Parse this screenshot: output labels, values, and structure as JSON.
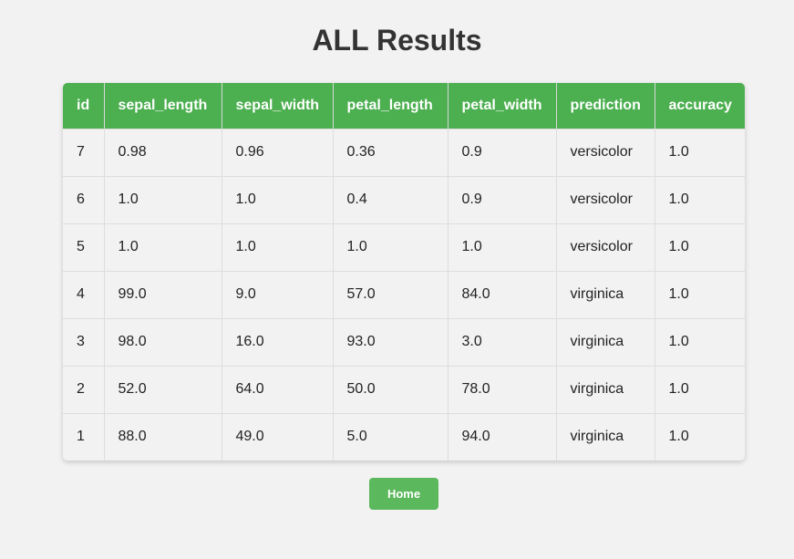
{
  "page": {
    "title": "ALL Results"
  },
  "table": {
    "columns": [
      "id",
      "sepal_length",
      "sepal_width",
      "petal_length",
      "petal_width",
      "prediction",
      "accuracy"
    ],
    "rows": [
      [
        "7",
        "0.98",
        "0.96",
        "0.36",
        "0.9",
        "versicolor",
        "1.0"
      ],
      [
        "6",
        "1.0",
        "1.0",
        "0.4",
        "0.9",
        "versicolor",
        "1.0"
      ],
      [
        "5",
        "1.0",
        "1.0",
        "1.0",
        "1.0",
        "versicolor",
        "1.0"
      ],
      [
        "4",
        "99.0",
        "9.0",
        "57.0",
        "84.0",
        "virginica",
        "1.0"
      ],
      [
        "3",
        "98.0",
        "16.0",
        "93.0",
        "3.0",
        "virginica",
        "1.0"
      ],
      [
        "2",
        "52.0",
        "64.0",
        "50.0",
        "78.0",
        "virginica",
        "1.0"
      ],
      [
        "1",
        "88.0",
        "49.0",
        "5.0",
        "94.0",
        "virginica",
        "1.0"
      ]
    ]
  },
  "actions": {
    "home_label": "Home"
  },
  "colors": {
    "header_bg": "#4caf50",
    "button_bg": "#5cb85c",
    "page_bg": "#f2f2f2"
  }
}
